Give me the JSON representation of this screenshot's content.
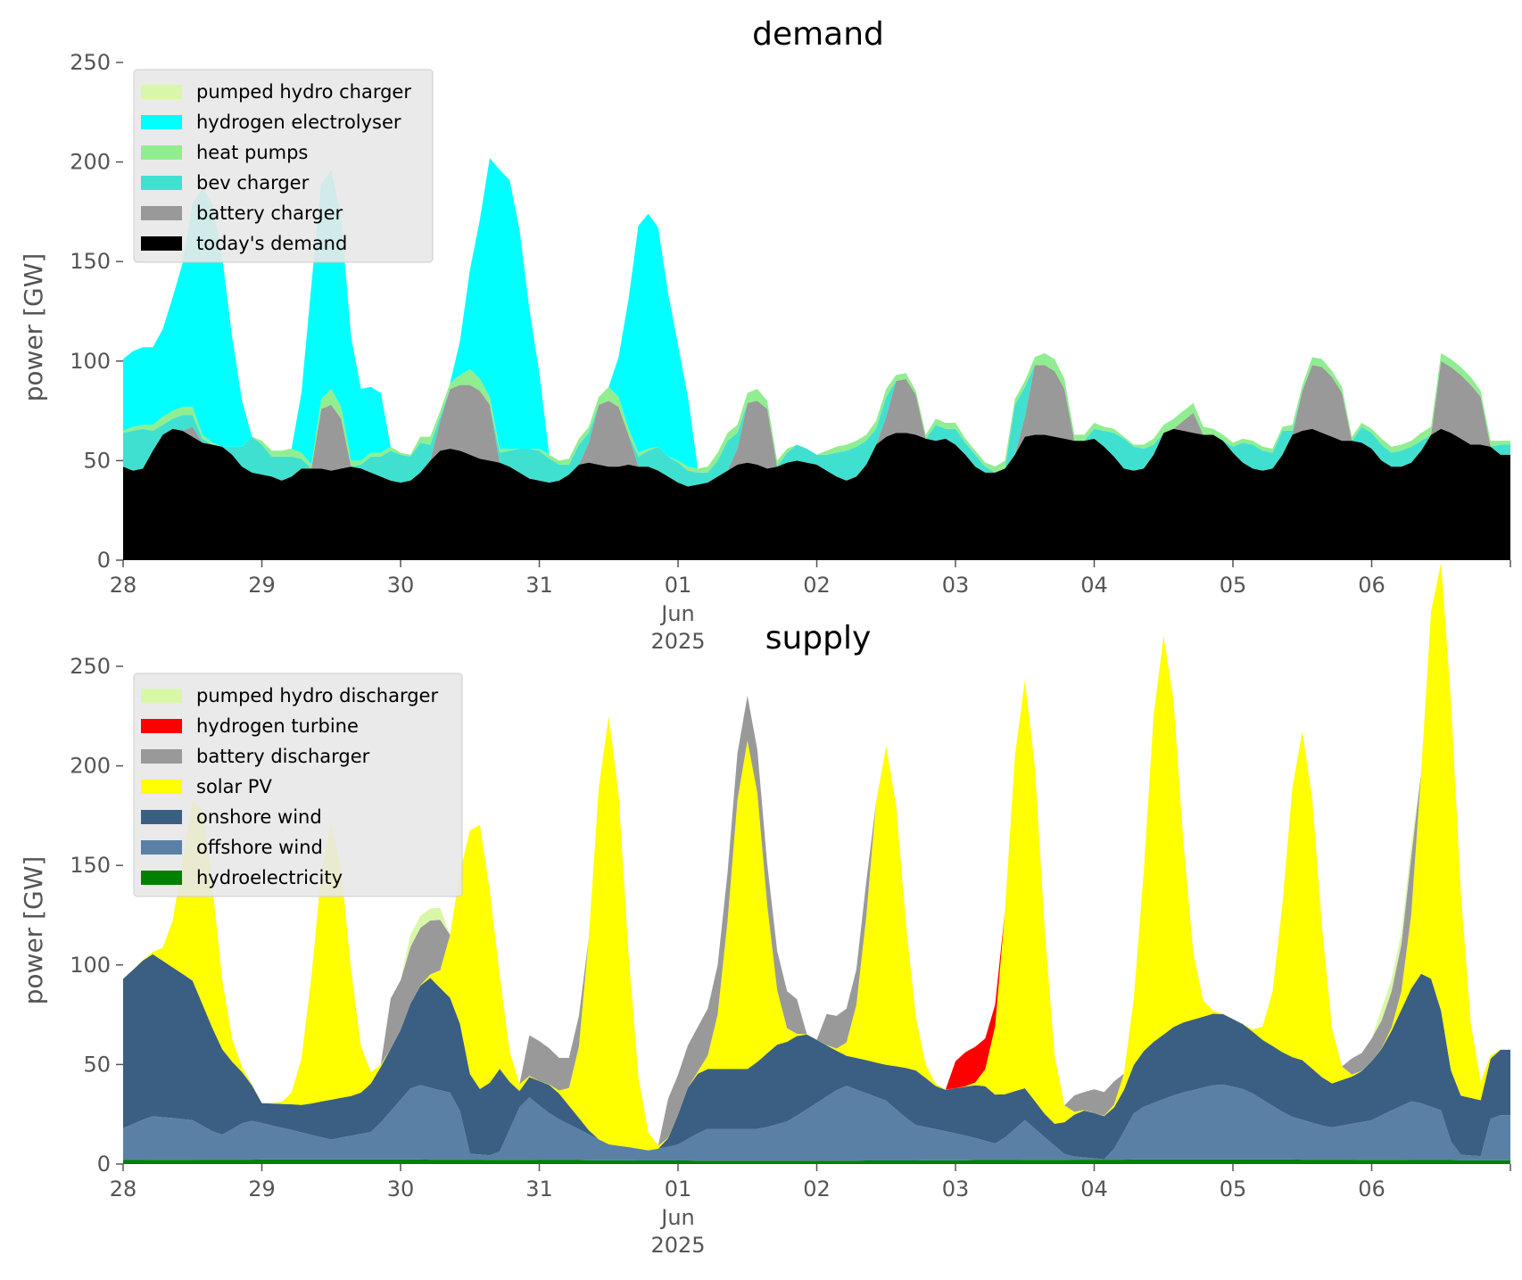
{
  "colors": {
    "pumped_hydro": "#d9f7a8",
    "hydrogen_electrolyser": "#00ffff",
    "heat_pumps": "#90ee90",
    "bev_charger": "#40e0d0",
    "battery": "#999999",
    "todays_demand": "#000000",
    "hydrogen_turbine": "#ff0000",
    "solar_pv": "#ffff00",
    "onshore_wind": "#3b5f82",
    "offshore_wind": "#5a81a5",
    "hydroelectricity": "#008000",
    "legend_bg": "#e8e8e8"
  },
  "chart_data": [
    {
      "type": "area",
      "stacked": true,
      "title": "demand",
      "ylabel": "power [GW]",
      "xlabel": "",
      "ylim": [
        0,
        250
      ],
      "yticks": [
        0,
        50,
        100,
        150,
        200,
        250
      ],
      "xlim_days": [
        "2025-05-28",
        "2025-06-07"
      ],
      "xticks": [
        "28",
        "29",
        "30",
        "31",
        "01",
        "02",
        "03",
        "04",
        "05",
        "06"
      ],
      "xtick_sublabel": {
        "tick": "01",
        "lines": [
          "Jun",
          "2025"
        ]
      },
      "x_days": [
        0.0,
        0.0714,
        0.1429,
        0.2143,
        0.2857,
        0.3571,
        0.4286,
        0.5,
        0.5714,
        0.6429,
        0.7143,
        0.7857,
        0.8571,
        0.9286,
        1.0,
        1.0714,
        1.1429,
        1.2143,
        1.2857,
        1.3571,
        1.4286,
        1.5,
        1.5714,
        1.6429,
        1.7143,
        1.7857,
        1.8571,
        1.9286,
        2.0,
        2.0714,
        2.1429,
        2.2143,
        2.2857,
        2.3571,
        2.4286,
        2.5,
        2.5714,
        2.6429,
        2.7143,
        2.7857,
        2.8571,
        2.9286,
        3.0,
        3.0714,
        3.1429,
        3.2143,
        3.2857,
        3.3571,
        3.4286,
        3.5,
        3.5714,
        3.6429,
        3.7143,
        3.7857,
        3.8571,
        3.9286,
        4.0,
        4.0714,
        4.1429,
        4.2143,
        4.2857,
        4.3571,
        4.4286,
        4.5,
        4.5714,
        4.6429,
        4.7143,
        4.7857,
        4.8571,
        4.9286,
        5.0,
        5.0714,
        5.1429,
        5.2143,
        5.2857,
        5.3571,
        5.4286,
        5.5,
        5.5714,
        5.6429,
        5.7143,
        5.7857,
        5.8571,
        5.9286,
        6.0,
        6.0714,
        6.1429,
        6.2143,
        6.2857,
        6.3571,
        6.4286,
        6.5,
        6.5714,
        6.6429,
        6.7143,
        6.7857,
        6.8571,
        6.9286,
        7.0,
        7.0714,
        7.1429,
        7.2143,
        7.2857,
        7.3571,
        7.4286,
        7.5,
        7.5714,
        7.6429,
        7.7143,
        7.7857,
        7.8571,
        7.9286,
        8.0,
        8.0714,
        8.1429,
        8.2143,
        8.2857,
        8.3571,
        8.4286,
        8.5,
        8.5714,
        8.6429,
        8.7143,
        8.7857,
        8.8571,
        8.9286,
        9.0,
        9.0714,
        9.1429,
        9.2143,
        9.2857,
        9.3571,
        9.4286,
        9.5,
        9.5714,
        9.6429,
        9.7143,
        9.7857,
        9.8571,
        9.9286
      ],
      "series": [
        {
          "name": "today's demand",
          "color_key": "todays_demand",
          "values": [
            47,
            45,
            46,
            55,
            63,
            66,
            65,
            62,
            59,
            58,
            57,
            53,
            47,
            44,
            43,
            42,
            40,
            42,
            46,
            46,
            46,
            45,
            46,
            47,
            46,
            44,
            42,
            40,
            39,
            40,
            44,
            50,
            55,
            56,
            55,
            53,
            51,
            50,
            49,
            47,
            44,
            41,
            40,
            39,
            40,
            43,
            48,
            49,
            48,
            47,
            47,
            48,
            47,
            47,
            45,
            42,
            39,
            37,
            38,
            39,
            42,
            45,
            48,
            49,
            48,
            46,
            47,
            49,
            50,
            49,
            48,
            45,
            42,
            40,
            42,
            48,
            58,
            62,
            64,
            64,
            63,
            61,
            60,
            61,
            58,
            53,
            47,
            44,
            44,
            46,
            53,
            62,
            63,
            63,
            62,
            61,
            60,
            60,
            61,
            57,
            52,
            46,
            45,
            46,
            53,
            64,
            66,
            65,
            64,
            63,
            63,
            60,
            54,
            49,
            46,
            45,
            46,
            53,
            63,
            65,
            66,
            64,
            62,
            60,
            60,
            59,
            56,
            50,
            47,
            47,
            49,
            55,
            63,
            66,
            64,
            61,
            58,
            58,
            57,
            53
          ]
        },
        {
          "name": "battery charger",
          "color_key": "battery",
          "values": [
            0,
            0,
            0,
            0,
            0,
            0,
            0,
            5,
            0,
            0,
            0,
            0,
            0,
            0,
            0,
            0,
            0,
            0,
            0,
            0,
            30,
            33,
            25,
            0,
            0,
            0,
            0,
            0,
            0,
            0,
            0,
            0,
            15,
            30,
            33,
            35,
            34,
            28,
            0,
            0,
            0,
            0,
            0,
            0,
            0,
            0,
            0,
            10,
            30,
            33,
            30,
            15,
            0,
            0,
            0,
            0,
            0,
            0,
            0,
            0,
            0,
            0,
            8,
            30,
            32,
            30,
            0,
            0,
            0,
            0,
            0,
            0,
            0,
            0,
            0,
            0,
            0,
            10,
            26,
            27,
            20,
            0,
            0,
            0,
            0,
            0,
            0,
            0,
            0,
            0,
            0,
            10,
            35,
            35,
            33,
            25,
            0,
            0,
            0,
            0,
            0,
            0,
            0,
            0,
            0,
            0,
            0,
            5,
            10,
            0,
            0,
            0,
            0,
            0,
            0,
            0,
            0,
            0,
            0,
            20,
            32,
            33,
            30,
            24,
            0,
            0,
            0,
            0,
            0,
            0,
            0,
            0,
            0,
            34,
            33,
            32,
            30,
            24,
            0,
            0
          ]
        },
        {
          "name": "bev charger",
          "color_key": "bev_charger",
          "values": [
            17,
            20,
            20,
            10,
            5,
            5,
            8,
            6,
            2,
            0,
            0,
            4,
            10,
            18,
            15,
            10,
            12,
            10,
            5,
            0,
            0,
            0,
            0,
            0,
            2,
            8,
            10,
            15,
            14,
            12,
            15,
            8,
            2,
            0,
            0,
            0,
            0,
            0,
            5,
            8,
            12,
            15,
            15,
            12,
            8,
            5,
            10,
            5,
            0,
            0,
            0,
            0,
            5,
            8,
            12,
            10,
            10,
            8,
            6,
            5,
            8,
            15,
            8,
            0,
            0,
            0,
            0,
            5,
            8,
            7,
            5,
            8,
            12,
            15,
            15,
            12,
            8,
            10,
            0,
            0,
            0,
            0,
            8,
            5,
            8,
            6,
            6,
            3,
            0,
            0,
            25,
            15,
            0,
            0,
            0,
            0,
            0,
            0,
            5,
            8,
            12,
            15,
            12,
            10,
            5,
            0,
            0,
            0,
            0,
            0,
            0,
            0,
            3,
            10,
            12,
            10,
            8,
            12,
            2,
            0,
            0,
            0,
            0,
            0,
            0,
            8,
            8,
            8,
            7,
            8,
            8,
            5,
            0,
            0,
            0,
            0,
            0,
            0,
            0,
            5
          ]
        },
        {
          "name": "heat pumps",
          "color_key": "heat_pumps",
          "values": [
            1,
            2,
            2,
            3,
            4,
            4,
            4,
            4,
            2,
            1,
            0,
            0,
            0,
            0,
            2,
            3,
            3,
            4,
            3,
            2,
            5,
            8,
            6,
            3,
            2,
            2,
            2,
            2,
            1,
            1,
            3,
            4,
            3,
            3,
            5,
            8,
            6,
            4,
            2,
            1,
            0,
            0,
            1,
            2,
            2,
            3,
            3,
            3,
            4,
            7,
            5,
            3,
            2,
            1,
            0,
            0,
            1,
            2,
            2,
            3,
            4,
            4,
            4,
            5,
            6,
            4,
            3,
            2,
            0,
            0,
            0,
            2,
            3,
            3,
            3,
            3,
            4,
            4,
            3,
            3,
            2,
            2,
            3,
            3,
            3,
            2,
            2,
            2,
            3,
            4,
            3,
            3,
            4,
            6,
            6,
            5,
            3,
            3,
            3,
            2,
            2,
            1,
            1,
            2,
            3,
            4,
            5,
            5,
            5,
            4,
            3,
            3,
            2,
            2,
            2,
            2,
            2,
            2,
            3,
            3,
            4,
            4,
            3,
            3,
            2,
            2,
            2,
            3,
            3,
            3,
            3,
            4,
            4,
            4,
            4,
            4,
            4,
            3,
            3,
            2
          ]
        },
        {
          "name": "hydrogen electrolyser",
          "color_key": "hydrogen_electrolyser",
          "values": [
            36,
            38,
            39,
            39,
            44,
            57,
            72,
            102,
            124,
            120,
            95,
            55,
            23,
            0,
            0,
            0,
            0,
            0,
            30,
            90,
            108,
            110,
            95,
            62,
            36,
            33,
            30,
            0,
            0,
            0,
            0,
            0,
            0,
            0,
            17,
            50,
            80,
            120,
            140,
            135,
            110,
            70,
            38,
            0,
            0,
            0,
            0,
            0,
            0,
            0,
            20,
            65,
            114,
            118,
            110,
            82,
            58,
            35,
            0,
            0,
            0,
            0,
            0,
            0,
            0,
            0,
            0,
            0,
            0,
            0,
            0,
            0,
            0,
            0,
            0,
            0,
            0,
            0,
            0,
            0,
            0,
            0,
            0,
            0,
            0,
            0,
            0,
            0,
            0,
            0,
            0,
            0,
            0,
            0,
            0,
            0,
            0,
            0,
            0,
            0,
            0,
            0,
            0,
            0,
            0,
            0,
            0,
            0,
            0,
            0,
            0,
            0,
            0,
            0,
            0,
            0,
            0,
            0,
            0,
            0,
            0,
            0,
            0,
            0,
            0,
            0,
            0,
            0,
            0,
            0,
            0,
            0,
            0,
            0,
            0,
            0,
            0,
            0,
            0,
            0
          ]
        },
        {
          "name": "pumped hydro charger",
          "color_key": "pumped_hydro",
          "values": [
            0,
            0,
            0,
            0,
            0,
            0,
            0,
            0,
            0,
            0,
            0,
            0,
            0,
            0,
            0,
            0,
            0,
            0,
            0,
            0,
            0,
            0,
            0,
            0,
            0,
            0,
            0,
            0,
            0,
            0,
            0,
            0,
            0,
            0,
            0,
            0,
            0,
            0,
            0,
            0,
            0,
            0,
            0,
            0,
            0,
            0,
            0,
            0,
            0,
            0,
            0,
            0,
            0,
            0,
            0,
            0,
            0,
            0,
            0,
            0,
            0,
            0,
            0,
            0,
            0,
            0,
            0,
            0,
            0,
            0,
            0,
            0,
            0,
            0,
            0,
            0,
            0,
            0,
            0,
            0,
            0,
            0,
            0,
            0,
            0,
            0,
            0,
            0,
            0,
            0,
            0,
            0,
            0,
            0,
            0,
            0,
            0,
            0,
            0,
            0,
            0,
            0,
            0,
            0,
            0,
            0,
            0,
            0,
            0,
            0,
            0,
            0,
            0,
            0,
            0,
            0,
            0,
            0,
            0,
            0,
            0,
            0,
            0,
            0,
            0,
            0,
            0,
            0,
            0,
            0,
            0,
            0,
            0,
            0,
            0,
            0,
            0,
            0,
            0,
            0
          ]
        }
      ],
      "legend": {
        "placement": "upper-left",
        "entries": [
          "pumped hydro charger",
          "hydrogen electrolyser",
          "heat pumps",
          "bev charger",
          "battery charger",
          "today's demand"
        ]
      }
    },
    {
      "type": "area",
      "stacked": true,
      "title": "supply",
      "ylabel": "power [GW]",
      "xlabel": "",
      "ylim": [
        0,
        250
      ],
      "yticks": [
        0,
        50,
        100,
        150,
        200,
        250
      ],
      "xlim_days": [
        "2025-05-28",
        "2025-06-07"
      ],
      "xticks": [
        "28",
        "29",
        "30",
        "31",
        "01",
        "02",
        "03",
        "04",
        "05",
        "06"
      ],
      "xtick_sublabel": {
        "tick": "01",
        "lines": [
          "Jun",
          "2025"
        ]
      },
      "series": [
        {
          "name": "hydroelectricity",
          "color_key": "hydroelectricity",
          "values": [
            2,
            2
          ]
        },
        {
          "name": "offshore wind",
          "color_key": "offshore_wind",
          "values": [
            16,
            22
          ]
        },
        {
          "name": "onshore wind",
          "color_key": "onshore_wind",
          "values": [
            75,
            80
          ]
        },
        {
          "name": "solar PV",
          "color_key": "solar_pv",
          "values": [
            0,
            0
          ]
        },
        {
          "name": "battery discharger",
          "color_key": "battery",
          "values": [
            4,
            4
          ]
        },
        {
          "name": "hydrogen turbine",
          "color_key": "hydrogen_turbine",
          "values": [
            0,
            0
          ]
        },
        {
          "name": "pumped hydro discharger",
          "color_key": "pumped_hydro",
          "values": [
            0,
            0
          ]
        }
      ],
      "legend": {
        "placement": "upper-left",
        "entries": [
          "pumped hydro discharger",
          "hydrogen turbine",
          "battery discharger",
          "solar PV",
          "onshore wind",
          "offshore wind",
          "hydroelectricity"
        ]
      }
    }
  ]
}
